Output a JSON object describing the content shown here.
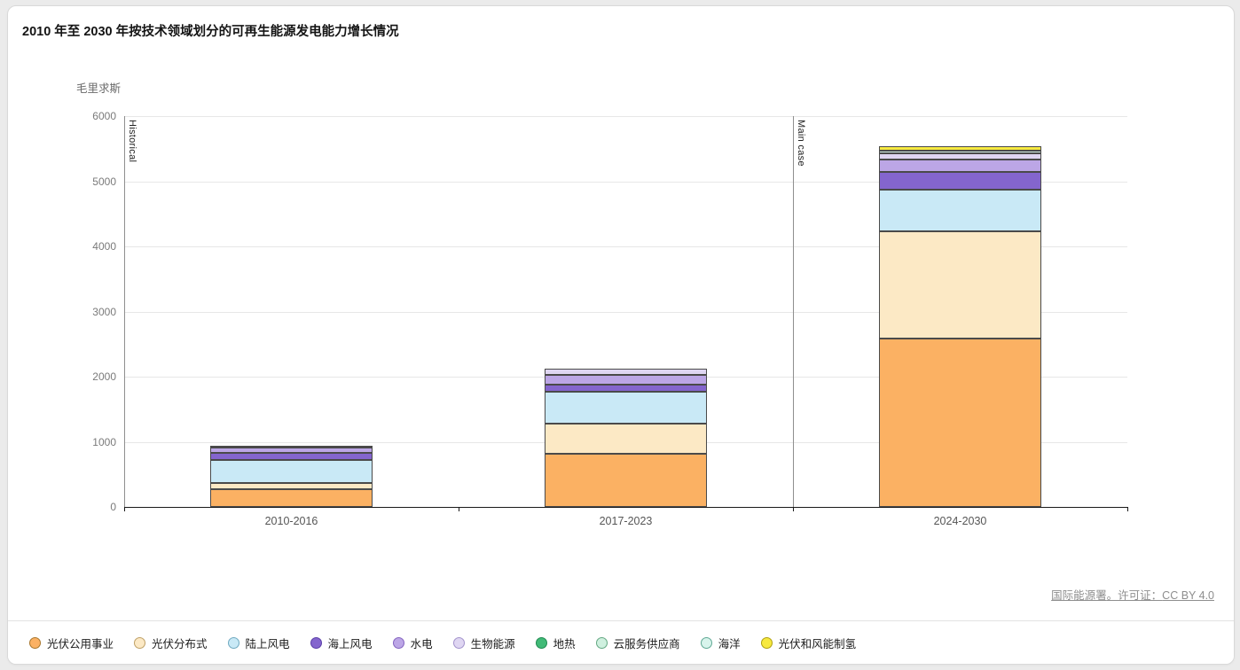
{
  "page": {
    "title": "2010 年至 2030 年按技术领域划分的可再生能源发电能力增长情况",
    "unit_label": "毛里求斯"
  },
  "footer": {
    "source": "国际能源署",
    "separator": "。许可证：",
    "license": "CC BY 4.0"
  },
  "chart_data": {
    "type": "bar",
    "stacked": true,
    "title": "2010 年至 2030 年按技术领域划分的可再生能源发电能力增长情况",
    "subtitle": "毛里求斯",
    "categories": [
      "2010-2016",
      "2017-2023",
      "2024-2030"
    ],
    "ylim": [
      0,
      6000
    ],
    "ytick_step": 1000,
    "grid": "horizontal",
    "legend_position": "bottom",
    "section_annotations": [
      {
        "label": "Historical",
        "section_index": 0
      },
      {
        "label": "Main case",
        "section_index": 2
      }
    ],
    "series": [
      {
        "name": "光伏公用事业",
        "color": "#FBB163",
        "marker_border": "#A8762B",
        "values": [
          270,
          820,
          2580
        ]
      },
      {
        "name": "光伏分布式",
        "color": "#FCE9C5",
        "marker_border": "#BFA066",
        "values": [
          95,
          460,
          1650
        ]
      },
      {
        "name": "陆上风电",
        "color": "#C9E9F6",
        "marker_border": "#6FA9C0",
        "values": [
          350,
          490,
          640
        ]
      },
      {
        "name": "海上风电",
        "color": "#8465CE",
        "marker_border": "#5A3FA8",
        "values": [
          120,
          110,
          270
        ]
      },
      {
        "name": "水电",
        "color": "#BCA6E6",
        "marker_border": "#8464C0",
        "values": [
          70,
          150,
          190
        ]
      },
      {
        "name": "生物能源",
        "color": "#DFD6F2",
        "marker_border": "#A393CC",
        "values": [
          40,
          90,
          100
        ]
      },
      {
        "name": "地热",
        "color": "#41BA77",
        "marker_border": "#1F8A50",
        "values": [
          0,
          0,
          0
        ]
      },
      {
        "name": "云服务供应商",
        "color": "#CFF0DF",
        "marker_border": "#63A882",
        "values": [
          0,
          0,
          0
        ]
      },
      {
        "name": "海洋",
        "color": "#D8F4EC",
        "marker_border": "#5FA894",
        "values": [
          0,
          0,
          35
        ]
      },
      {
        "name": "光伏和风能制氢",
        "color": "#F7E93F",
        "marker_border": "#AFA010",
        "values": [
          0,
          0,
          70
        ]
      }
    ]
  }
}
